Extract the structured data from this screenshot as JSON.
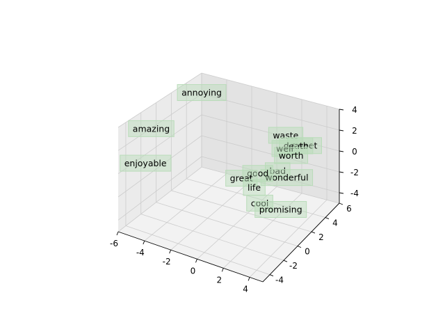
{
  "chart_data": {
    "type": "scatter",
    "projection": "3d",
    "grid": true,
    "label_box_color": "#b9dcb9",
    "pane_colors": {
      "left": "#ebebeb",
      "right": "#e3e3e3",
      "floor": "#f2f2f2",
      "grid": "#cccccc",
      "axis": "#000000"
    },
    "xlim": [
      -6,
      5
    ],
    "ylim": [
      -5,
      6
    ],
    "zlim": [
      -5,
      4
    ],
    "x_ticks": [
      "-6",
      "-4",
      "-2",
      "0",
      "2",
      "4"
    ],
    "y_ticks": [
      "-4",
      "-2",
      "0",
      "2",
      "4",
      "6"
    ],
    "z_ticks": [
      "-4",
      "-2",
      "0",
      "2",
      "4"
    ],
    "points": [
      {
        "label": "annoying",
        "x": -4.5,
        "y": 3.5,
        "z": 3.8
      },
      {
        "label": "amazing",
        "x": -5.5,
        "y": -1.5,
        "z": 2.5
      },
      {
        "label": "waste",
        "x": 1.0,
        "y": 5.5,
        "z": 0.5
      },
      {
        "label": "sweet",
        "x": 2.5,
        "y": 5.5,
        "z": 0.0
      },
      {
        "label": "death",
        "x": 2.0,
        "y": 5.2,
        "z": 0.0
      },
      {
        "label": "well",
        "x": 1.5,
        "y": 4.5,
        "z": 0.0
      },
      {
        "label": "worth",
        "x": 2.0,
        "y": 4.5,
        "z": -0.5
      },
      {
        "label": "bad",
        "x": 1.5,
        "y": 3.5,
        "z": -1.5
      },
      {
        "label": "wonderful",
        "x": 2.5,
        "y": 3.0,
        "z": -1.5
      },
      {
        "label": "good",
        "x": 0.5,
        "y": 2.5,
        "z": -1.5
      },
      {
        "label": "great",
        "x": -0.5,
        "y": 2.0,
        "z": -2.0
      },
      {
        "label": "life",
        "x": 0.5,
        "y": 2.0,
        "z": -2.5
      },
      {
        "label": "cool",
        "x": 1.5,
        "y": 1.0,
        "z": -3.0
      },
      {
        "label": "promising",
        "x": 4.5,
        "y": -1.5,
        "z": -1.0
      },
      {
        "label": "enjoyable",
        "x": -4.5,
        "y": -4.0,
        "z": 1.0
      }
    ]
  }
}
